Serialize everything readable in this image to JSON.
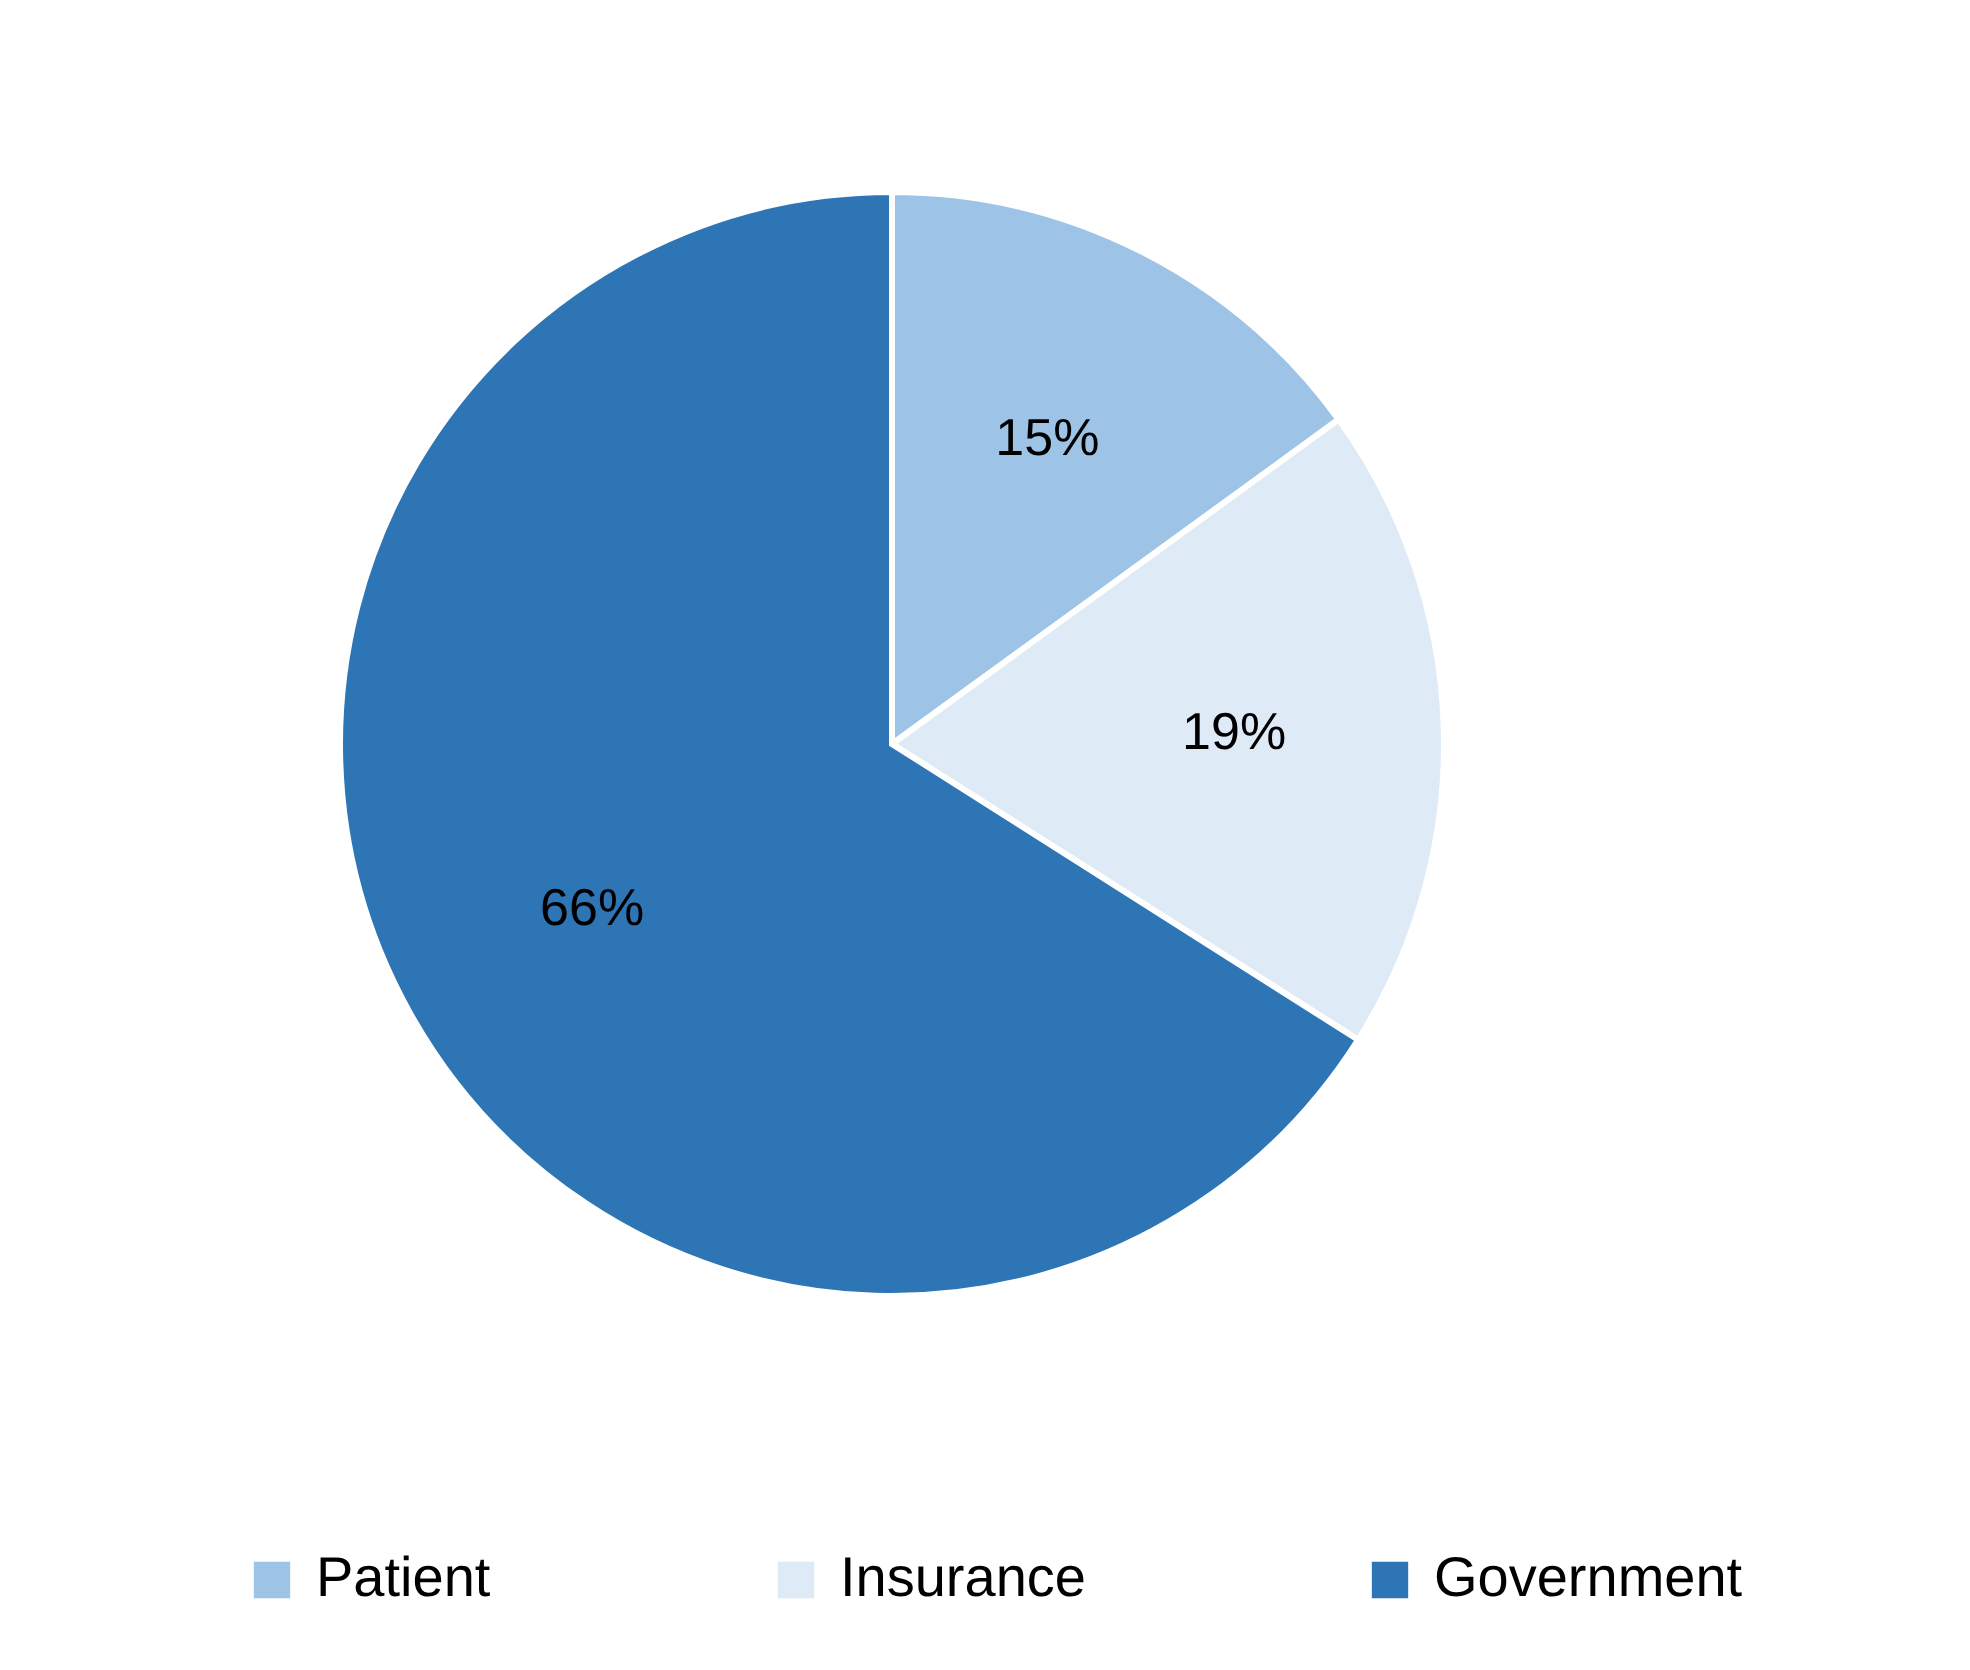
{
  "chart_data": {
    "type": "pie",
    "categories": [
      "Patient",
      "Insurance",
      "Government"
    ],
    "values": [
      15,
      19,
      66
    ],
    "value_labels": [
      "15%",
      "19%",
      "66%"
    ],
    "colors": [
      "#9dc3e6",
      "#deebf7",
      "#2e75b6"
    ],
    "legend": "bottom"
  }
}
